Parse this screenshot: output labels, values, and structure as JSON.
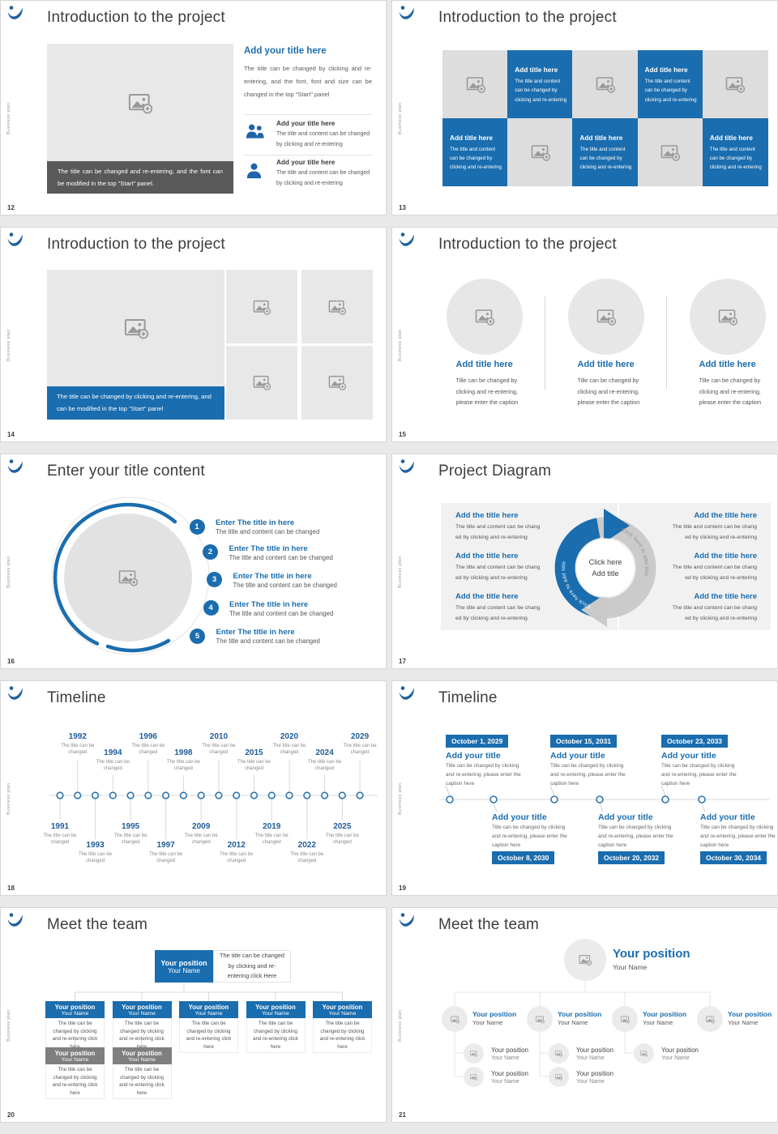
{
  "meta": {
    "accent": "#1a6dae",
    "year_blue": "#1f5c99",
    "dark_bar_gray": "#595959",
    "org_gray": "#7f7f7f",
    "tile_gray": "#dddddd",
    "placeholder_gray": "#e8e8e8"
  },
  "chrome": {
    "vertical_label": "Business plan",
    "logo_icon": "swoosh-logo-icon",
    "image_icon": "image-placeholder-icon"
  },
  "slides": [
    {
      "number": "12",
      "title": "Introduction to the project",
      "type": "image-left-details",
      "content": {
        "caption": "The title can be changed and re-entering, and the font can be modified in the top \"Start\" panel.",
        "heading": "Add your title here",
        "body": "The title can be changed by clicking and re-entering, and the font, font and size can be changed in the top \"Start\" panel",
        "items": [
          {
            "icon": "people-icon",
            "title": "Add your title here",
            "text": "The title and content can be changed by clicking and re-entering"
          },
          {
            "icon": "person-icon",
            "title": "Add your title here",
            "text": "The title and content can be changed by clicking and re-entering"
          }
        ]
      }
    },
    {
      "number": "13",
      "title": "Introduction to the project",
      "type": "checker-tiles",
      "content": {
        "tile_title": "Add title here",
        "tile_text": "The title and content can be changed by clicking and re-entering",
        "tiles": [
          "image",
          "text",
          "image",
          "text",
          "image",
          "text",
          "image",
          "text",
          "image",
          "text"
        ]
      }
    },
    {
      "number": "14",
      "title": "Introduction to the project",
      "type": "big-image-grid",
      "content": {
        "caption": "The title can be changed by clicking and re-entering, and can be modified in the top \"Start\" panel"
      }
    },
    {
      "number": "15",
      "title": "Introduction to the project",
      "type": "three-circles",
      "content": {
        "columns": [
          {
            "title": "Add title here",
            "text": "Tille can be changed by clicking and re-entering, please enter the caption"
          },
          {
            "title": "Add title here",
            "text": "Tille can be changed by clicking and re-entering, please enter the caption"
          },
          {
            "title": "Add title here",
            "text": "Tille can be changed by clicking and re-entering, please enter the caption"
          }
        ]
      }
    },
    {
      "number": "16",
      "title": "Enter your title content",
      "type": "numbered-circle",
      "content": {
        "items": [
          {
            "num": "1",
            "title": "Enter The title in here",
            "text": "The title and content can be changed"
          },
          {
            "num": "2",
            "title": "Enter The title in here",
            "text": "The title and content can be changed"
          },
          {
            "num": "3",
            "title": "Enter The title in here",
            "text": "The title and content can be changed"
          },
          {
            "num": "4",
            "title": "Enter The title in here",
            "text": "The title and content can be changed"
          },
          {
            "num": "5",
            "title": "Enter The title in here",
            "text": "The title and content can be changed"
          }
        ]
      }
    },
    {
      "number": "17",
      "title": "Project Diagram",
      "type": "cycle-diagram",
      "content": {
        "left_items": [
          {
            "title": "Add the title here",
            "lines": [
              "The title and content can be chang",
              "ed by clicking and re-entering"
            ]
          },
          {
            "title": "Add the title here",
            "lines": [
              "The title and content can be chang",
              "ed by clicking and re-entering"
            ]
          },
          {
            "title": "Add the title here",
            "lines": [
              "The title and content can be chang",
              "ed by clicking and re-entering"
            ]
          }
        ],
        "right_items": [
          {
            "title": "Add the title here",
            "lines": [
              "The title and content can be chang",
              "ed by clicking and re-entering"
            ]
          },
          {
            "title": "Add the title here",
            "lines": [
              "The title and content can be chang",
              "ed by clicking and re-entering"
            ]
          },
          {
            "title": "Add the title here",
            "lines": [
              "The title and content can be chang",
              "ed by clicking and re-entering"
            ]
          }
        ],
        "center": {
          "line1": "Click here",
          "line2": "Add title",
          "arc_label": "Click here to add title"
        }
      }
    },
    {
      "number": "18",
      "title": "Timeline",
      "type": "year-timeline",
      "content": {
        "caption": "The title can be changed",
        "events": [
          {
            "year": "1991",
            "side": "below",
            "level": 0
          },
          {
            "year": "1992",
            "side": "above",
            "level": 0
          },
          {
            "year": "1993",
            "side": "below",
            "level": 1
          },
          {
            "year": "1994",
            "side": "above",
            "level": 1
          },
          {
            "year": "1995",
            "side": "below",
            "level": 0
          },
          {
            "year": "1996",
            "side": "above",
            "level": 0
          },
          {
            "year": "1997",
            "side": "below",
            "level": 1
          },
          {
            "year": "1998",
            "side": "above",
            "level": 1
          },
          {
            "year": "2009",
            "side": "below",
            "level": 0
          },
          {
            "year": "2010",
            "side": "above",
            "level": 0
          },
          {
            "year": "2012",
            "side": "below",
            "level": 1
          },
          {
            "year": "2015",
            "side": "above",
            "level": 1
          },
          {
            "year": "2019",
            "side": "below",
            "level": 0
          },
          {
            "year": "2020",
            "side": "above",
            "level": 0
          },
          {
            "year": "2022",
            "side": "below",
            "level": 1
          },
          {
            "year": "2024",
            "side": "above",
            "level": 1
          },
          {
            "year": "2025",
            "side": "below",
            "level": 0
          },
          {
            "year": "2029",
            "side": "above",
            "level": 0
          }
        ]
      }
    },
    {
      "number": "19",
      "title": "Timeline",
      "type": "date-timeline",
      "content": {
        "item_title": "Add your title",
        "item_text": "Title can be changed by clicking and re-entering, please enter the caption here",
        "above": [
          {
            "date": "October 1, 2029"
          },
          {
            "date": "October 15, 2031"
          },
          {
            "date": "October 23, 2033"
          }
        ],
        "below": [
          {
            "date": "October 8, 2030"
          },
          {
            "date": "October 20, 2032"
          },
          {
            "date": "October 30, 2034"
          }
        ]
      }
    },
    {
      "number": "20",
      "title": "Meet the team",
      "type": "org-boxes",
      "content": {
        "position": "Your position",
        "name": "Your Name",
        "root_note": "The title can be changed by clicking and re-entering click Here",
        "caption": "The title can be changed by clicking and re-entering click here",
        "row1_count": 5,
        "row2_count": 2
      }
    },
    {
      "number": "21",
      "title": "Meet the team",
      "type": "org-circles",
      "content": {
        "position": "Your position",
        "name": "Your Name",
        "branches": [
          {
            "subs": 2
          },
          {
            "subs": 2
          },
          {
            "subs": 1
          },
          {
            "subs": 0
          }
        ]
      }
    }
  ]
}
